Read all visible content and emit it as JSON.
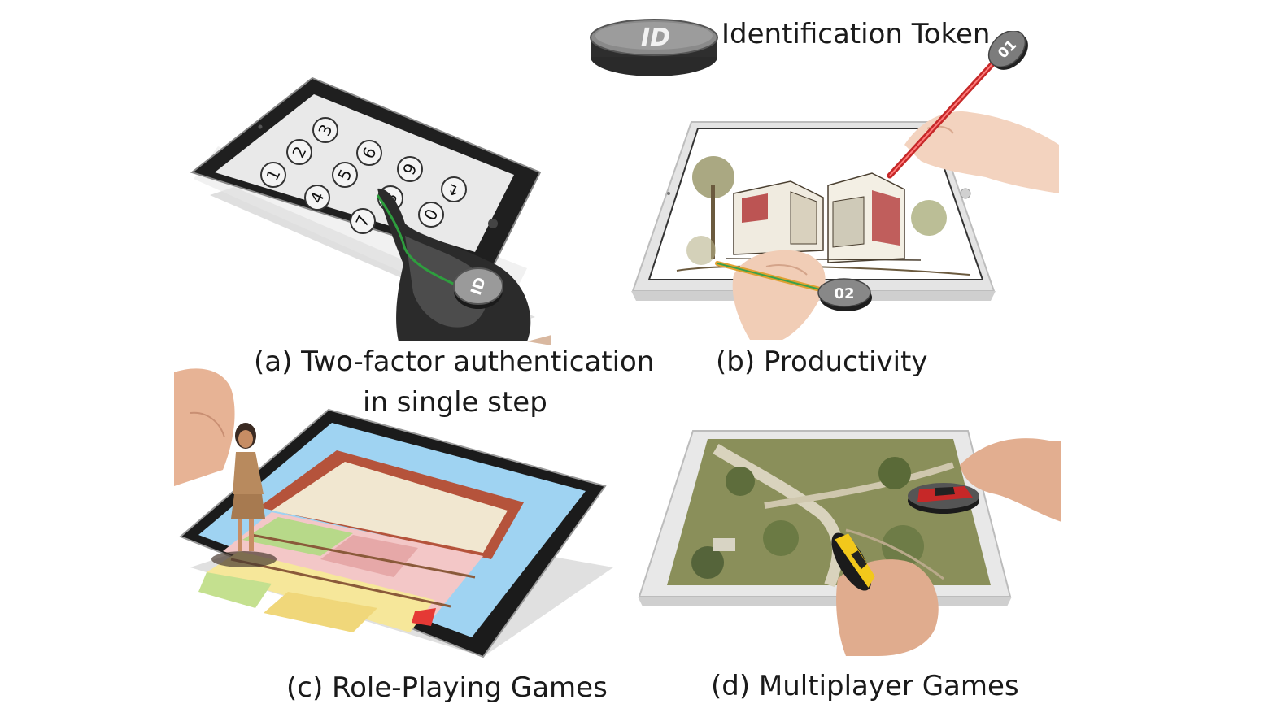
{
  "legend": {
    "token_label": "Identification Token",
    "token_badge": "ID"
  },
  "panels": {
    "a": {
      "caption_line1": "(a) Two-factor authentication",
      "caption_line2": "in single step",
      "keypad": [
        "1",
        "2",
        "3",
        "4",
        "5",
        "6",
        "7",
        "8",
        "9",
        "0",
        "↵"
      ],
      "token_badge": "ID"
    },
    "b": {
      "caption": "(b) Productivity",
      "stylus_tokens": [
        "01",
        "02"
      ]
    },
    "c": {
      "caption": "(c) Role-Playing Games"
    },
    "d": {
      "caption": "(d) Multiplayer Games"
    }
  },
  "colors": {
    "token_gray": "#6b6b6b",
    "token_dark": "#3a3a3a",
    "tablet_frame": "#1d1d1d",
    "tablet_silver": "#e6e6e6",
    "pencil_red": "#c62828",
    "wire_green": "#2e9e3e",
    "house_red": "#b33a3a",
    "map_green": "#7d8f52"
  }
}
